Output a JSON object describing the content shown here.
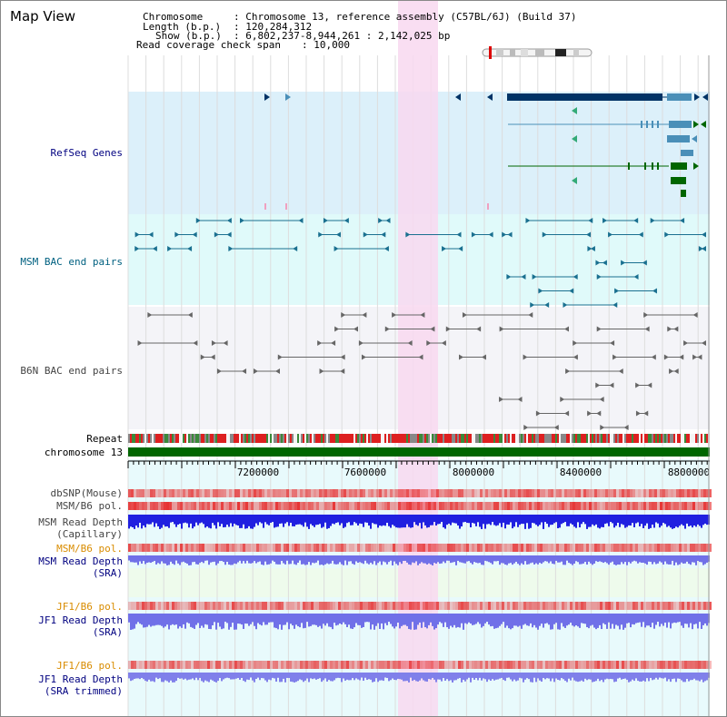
{
  "view": {
    "title": "Map View"
  },
  "info": {
    "chromosome_key": "Chromosome",
    "chromosome_val": ": Chromosome 13, reference assembly (C57BL/6J) (Build 37)",
    "length_key": "Length (b.p.)",
    "length_val": ": 120,284,312",
    "show_key": "Show (b.p.)",
    "show_val": ": 6,802,237-8,944,261 : 2,142,025 bp",
    "span_key": "Read coverage check span",
    "span_val": ": 10,000"
  },
  "tracks": {
    "refseq": "RefSeq Genes",
    "msm_bac": "MSM BAC end pairs",
    "b6n_bac": "B6N BAC end pairs",
    "repeat": "Repeat",
    "chromosome": "chromosome 13",
    "dbsnp": "dbSNP(Mouse)",
    "msm_b6_pol": "MSM/B6 pol.",
    "msm_depth_cap": "MSM Read Depth\n(Capillary)",
    "msm_b6_pol_2": "MSM/B6 pol.",
    "msm_depth_sra": "MSM Read Depth\n(SRA)",
    "jf1_b6_pol": "JF1/B6 pol.",
    "jf1_depth_sra": "JF1 Read Depth\n(SRA)",
    "jf1_b6_pol_2": "JF1/B6 pol.",
    "jf1_depth_trim": "JF1 Read Depth\n(SRA trimmed)"
  },
  "axis": {
    "ticks": [
      "7200000",
      "7600000",
      "8000000",
      "8400000",
      "8800000"
    ]
  },
  "colors": {
    "highlight": "#f8d8f0",
    "refseq_bg": "#dcf0fa",
    "msm_bg": "#e0fafa",
    "b6n_bg": "#f4f4f8",
    "gene_dark": "#003366",
    "gene_mid": "#4a8fb8",
    "gene_green": "#006600",
    "chromosome": "#006600",
    "depth_blue": "#2020e0",
    "depth_sra": "#7070e8"
  }
}
